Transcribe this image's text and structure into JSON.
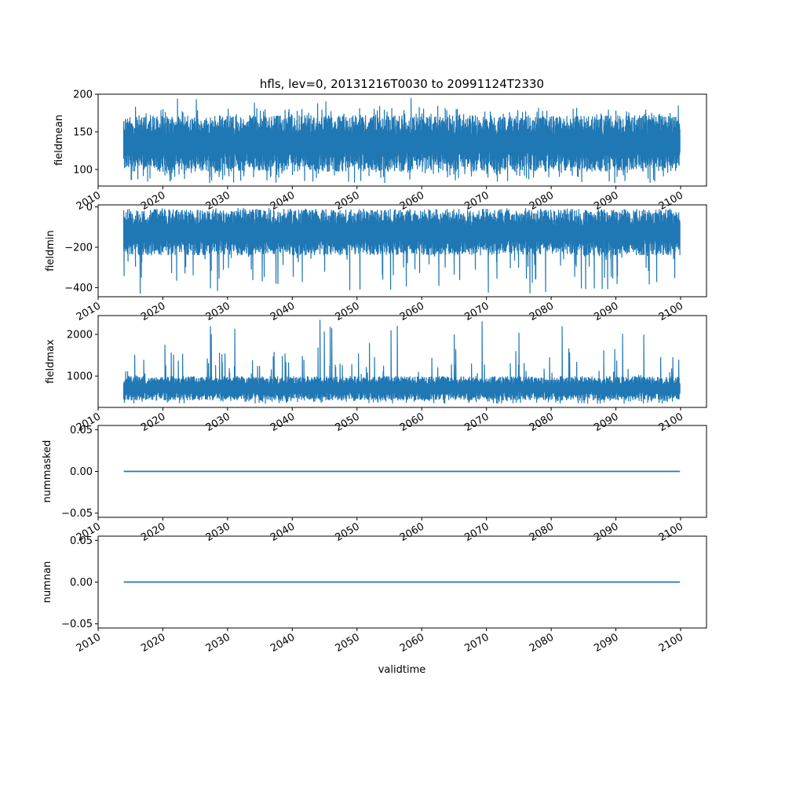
{
  "figure": {
    "title": "hfls, lev=0, 20131216T0030 to 20991124T2330",
    "xlabel": "validtime",
    "line_color": "#1f77b4"
  },
  "chart_data": [
    {
      "type": "line",
      "ylabel": "fieldmean",
      "xlim": [
        2010,
        2104
      ],
      "ylim": [
        78,
        200
      ],
      "yticks": [
        "100",
        "150",
        "200"
      ],
      "ytick_values": [
        100,
        150,
        200
      ],
      "xticks": [
        "2010",
        "2020",
        "2030",
        "2040",
        "2050",
        "2060",
        "2070",
        "2080",
        "2090",
        "2100"
      ],
      "series": [
        {
          "x": [
            2013.96,
            2099.9
          ],
          "y_range_bulk": [
            97,
            172
          ],
          "y_min": 82,
          "y_max": 195
        }
      ]
    },
    {
      "type": "line",
      "ylabel": "fieldmin",
      "xlim": [
        2010,
        2104
      ],
      "ylim": [
        -445,
        10
      ],
      "yticks": [
        "0",
        "−200",
        "−400"
      ],
      "ytick_values": [
        0,
        -200,
        -400
      ],
      "xticks": [
        "2010",
        "2020",
        "2030",
        "2040",
        "2050",
        "2060",
        "2070",
        "2080",
        "2090",
        "2100"
      ],
      "series": [
        {
          "x": [
            2013.96,
            2099.9
          ],
          "y_range_bulk": [
            -240,
            -15
          ],
          "y_min": -430,
          "y_max": -5
        }
      ]
    },
    {
      "type": "line",
      "ylabel": "fieldmax",
      "xlim": [
        2010,
        2104
      ],
      "ylim": [
        250,
        2450
      ],
      "yticks": [
        "1000",
        "2000"
      ],
      "ytick_values": [
        1000,
        2000
      ],
      "xticks": [
        "2010",
        "2020",
        "2030",
        "2040",
        "2050",
        "2060",
        "2070",
        "2080",
        "2090",
        "2100"
      ],
      "series": [
        {
          "x": [
            2013.96,
            2099.9
          ],
          "y_range_bulk": [
            420,
            1000
          ],
          "y_min": 340,
          "y_max": 2380
        }
      ]
    },
    {
      "type": "line",
      "ylabel": "nummasked",
      "xlim": [
        2010,
        2104
      ],
      "ylim": [
        -0.055,
        0.055
      ],
      "yticks": [
        "0.05",
        "0.00",
        "−0.05"
      ],
      "ytick_values": [
        0.05,
        0.0,
        -0.05
      ],
      "xticks": [
        "2010",
        "2020",
        "2030",
        "2040",
        "2050",
        "2060",
        "2070",
        "2080",
        "2090",
        "2100"
      ],
      "series": [
        {
          "x": [
            2013.96,
            2099.9
          ],
          "y": [
            0.0,
            0.0
          ]
        }
      ]
    },
    {
      "type": "line",
      "ylabel": "numnan",
      "xlim": [
        2010,
        2104
      ],
      "ylim": [
        -0.055,
        0.055
      ],
      "yticks": [
        "0.05",
        "0.00",
        "−0.05"
      ],
      "ytick_values": [
        0.05,
        0.0,
        -0.05
      ],
      "xticks": [
        "2010",
        "2020",
        "2030",
        "2040",
        "2050",
        "2060",
        "2070",
        "2080",
        "2090",
        "2100"
      ],
      "series": [
        {
          "x": [
            2013.96,
            2099.9
          ],
          "y": [
            0.0,
            0.0
          ]
        }
      ]
    }
  ]
}
